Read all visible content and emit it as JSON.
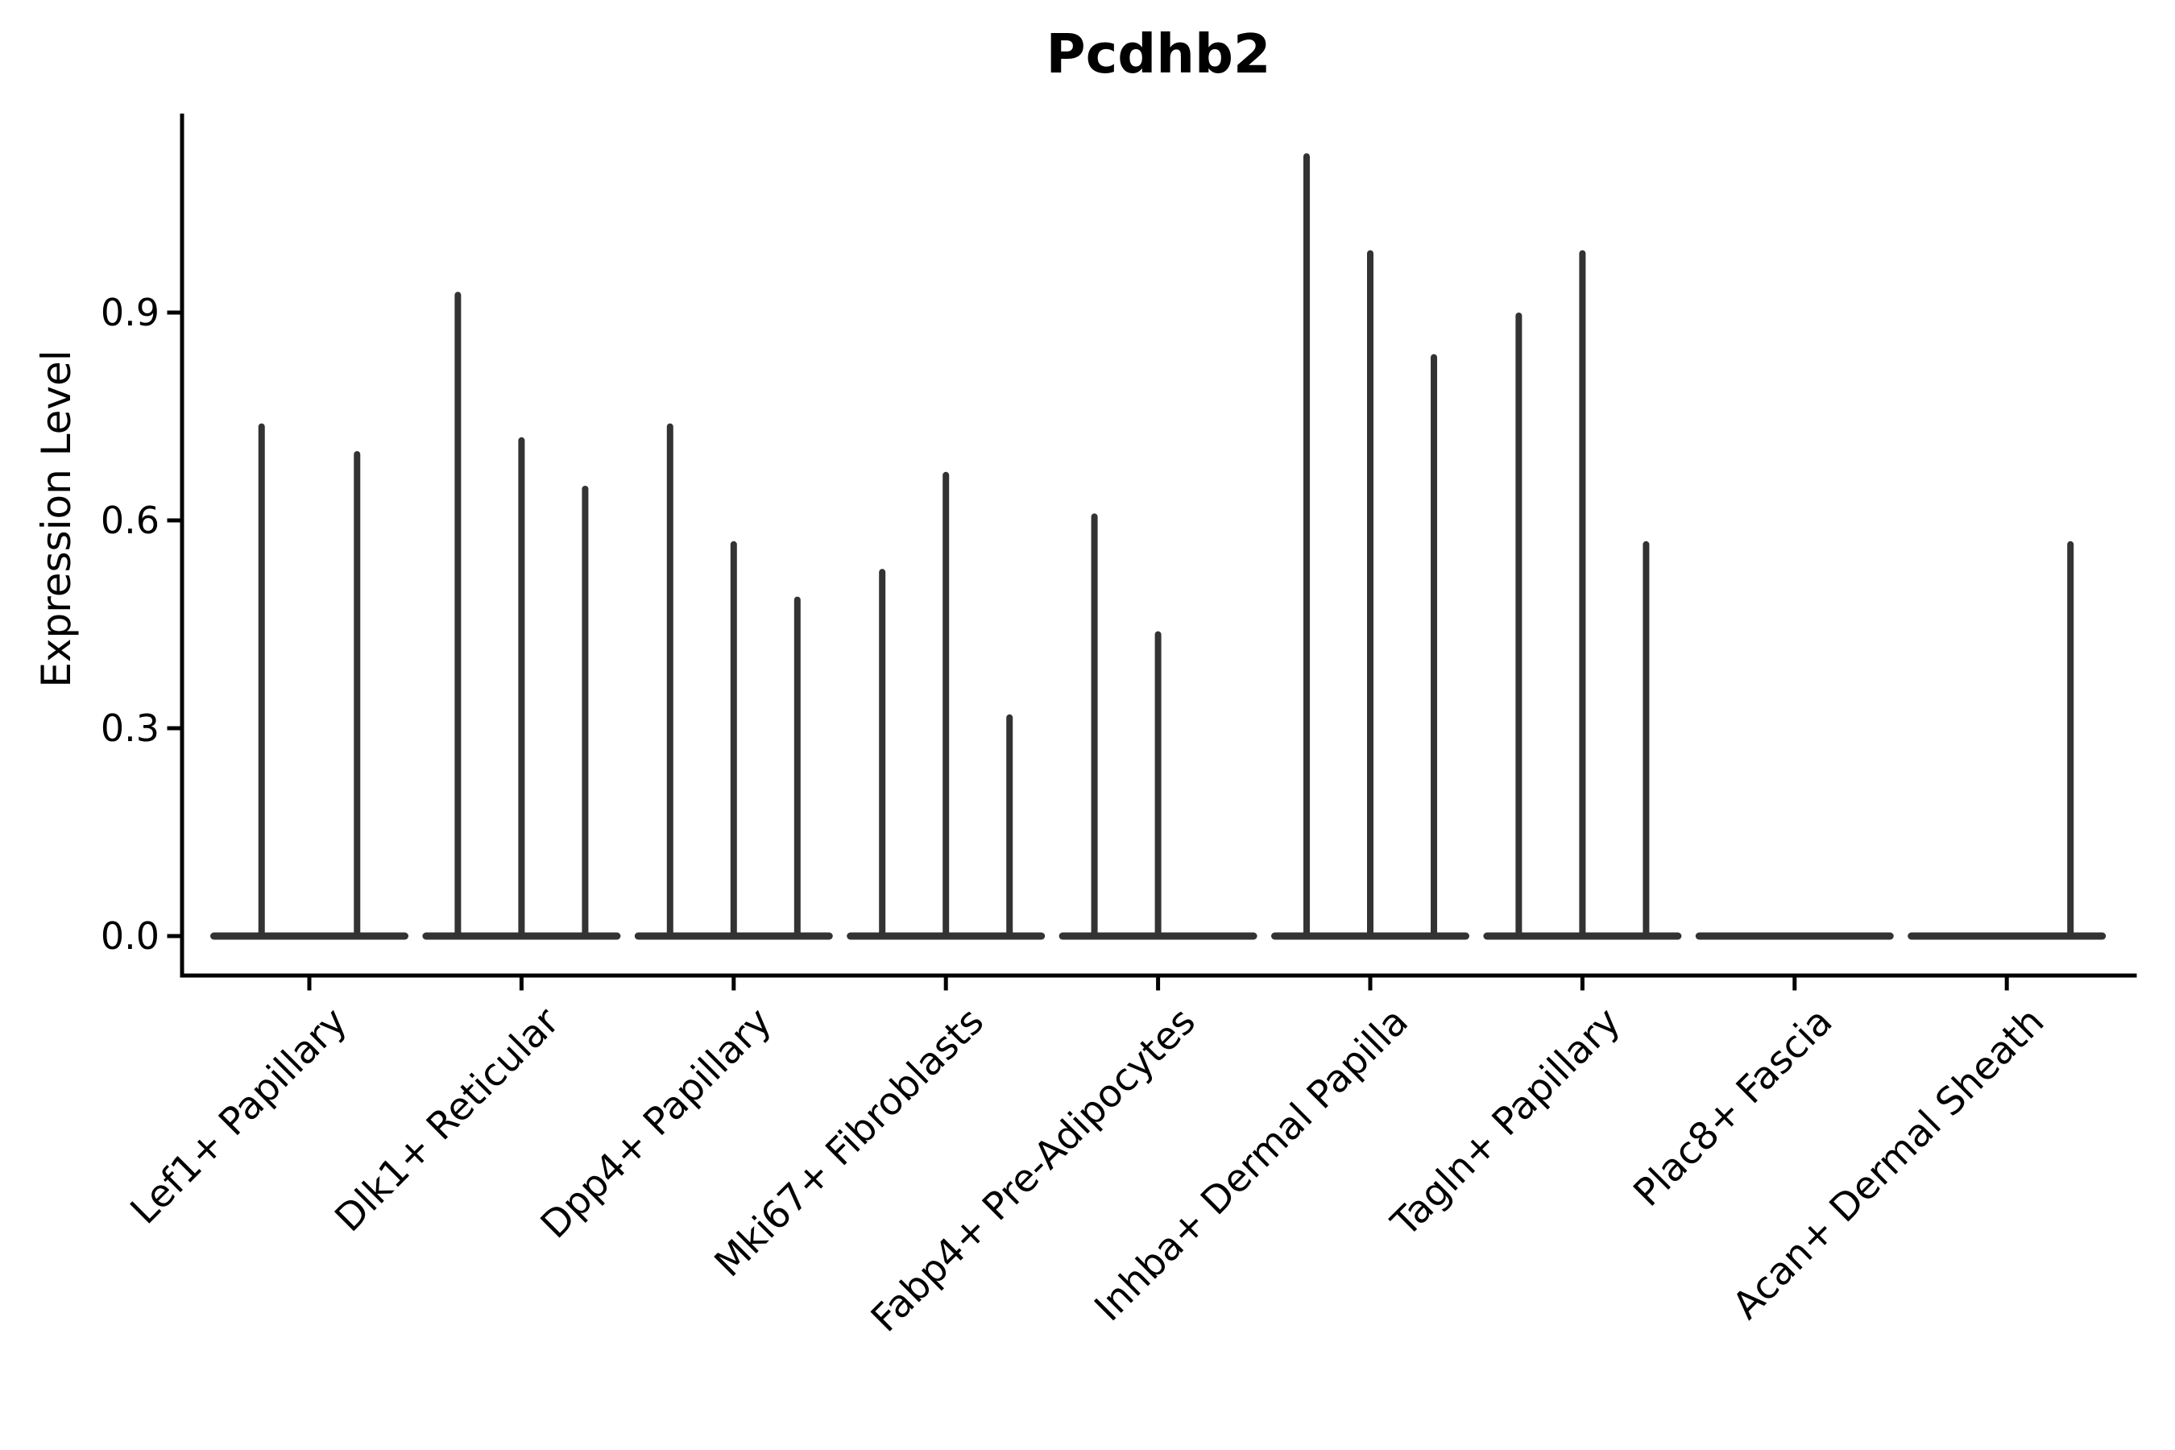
{
  "chart_data": {
    "type": "violin",
    "title": "Pcdhb2",
    "xlabel": "",
    "ylabel": "Expression Level",
    "ylim": [
      0,
      1.19
    ],
    "yticks": [
      {
        "value": 0.0,
        "label": "0.0"
      },
      {
        "value": 0.3,
        "label": "0.3"
      },
      {
        "value": 0.6,
        "label": "0.6"
      },
      {
        "value": 0.9,
        "label": "0.9"
      }
    ],
    "grid": false,
    "legend": "none",
    "violin_color": "#333333",
    "axis_color": "#000000",
    "categories": [
      "Lef1+ Papillary",
      "Dlk1+ Reticular",
      "Dpp4+ Papillary",
      "Mki67+ Fibroblasts",
      "Fabp4+ Pre-Adipocytes",
      "Inhba+ Dermal Papilla",
      "Tagln+ Papillary",
      "Plac8+ Fascia",
      "Acan+ Dermal Sheath"
    ],
    "groups": [
      {
        "category": "Lef1+ Papillary",
        "violins": [
          {
            "offset": -0.225,
            "peak": 0.74
          },
          {
            "offset": 0.225,
            "peak": 0.7
          }
        ]
      },
      {
        "category": "Dlk1+ Reticular",
        "violins": [
          {
            "offset": -0.3,
            "peak": 0.93
          },
          {
            "offset": 0.0,
            "peak": 0.72
          },
          {
            "offset": 0.3,
            "peak": 0.65
          }
        ]
      },
      {
        "category": "Dpp4+ Papillary",
        "violins": [
          {
            "offset": -0.3,
            "peak": 0.74
          },
          {
            "offset": 0.0,
            "peak": 0.57
          },
          {
            "offset": 0.3,
            "peak": 0.49
          }
        ]
      },
      {
        "category": "Mki67+ Fibroblasts",
        "violins": [
          {
            "offset": -0.3,
            "peak": 0.53
          },
          {
            "offset": 0.0,
            "peak": 0.67
          },
          {
            "offset": 0.3,
            "peak": 0.32
          }
        ]
      },
      {
        "category": "Fabp4+ Pre-Adipocytes",
        "violins": [
          {
            "offset": -0.3,
            "peak": 0.61
          },
          {
            "offset": 0.0,
            "peak": 0.44
          }
        ]
      },
      {
        "category": "Inhba+ Dermal Papilla",
        "violins": [
          {
            "offset": -0.3,
            "peak": 1.13
          },
          {
            "offset": 0.0,
            "peak": 0.99
          },
          {
            "offset": 0.3,
            "peak": 0.84
          }
        ]
      },
      {
        "category": "Tagln+ Papillary",
        "violins": [
          {
            "offset": -0.3,
            "peak": 0.9
          },
          {
            "offset": 0.0,
            "peak": 0.99
          },
          {
            "offset": 0.3,
            "peak": 0.57
          }
        ]
      },
      {
        "category": "Plac8+ Fascia",
        "violins": []
      },
      {
        "category": "Acan+ Dermal Sheath",
        "violins": [
          {
            "offset": 0.3,
            "peak": 0.57
          }
        ]
      }
    ]
  }
}
